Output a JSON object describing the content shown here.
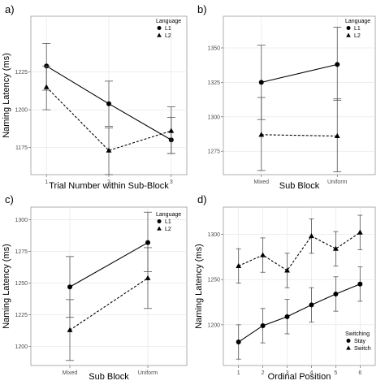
{
  "chart_data": [
    {
      "type": "line",
      "panel_label": "a)",
      "xlabel": "Trial Number within Sub-Block",
      "ylabel": "Naming Latency (ms)",
      "categories": [
        "1",
        "2",
        "3"
      ],
      "yticks": [
        1175,
        1200,
        1225
      ],
      "ylim": [
        1157,
        1262
      ],
      "legend": {
        "title": "Language",
        "position": "top-right"
      },
      "series": [
        {
          "name": "L1",
          "marker": "circle",
          "line": "solid",
          "values": [
            1229,
            1204,
            1180
          ],
          "err_low": [
            1213,
            1189,
            1171
          ],
          "err_high": [
            1244,
            1219,
            1195
          ]
        },
        {
          "name": "L2",
          "marker": "triangle",
          "line": "dashed",
          "values": [
            1215,
            1173,
            1186
          ],
          "err_low": [
            1200,
            1157,
            1171
          ],
          "err_high": [
            1229,
            1188,
            1202
          ]
        }
      ]
    },
    {
      "type": "line",
      "panel_label": "b)",
      "xlabel": "Sub Block",
      "ylabel": "",
      "categories": [
        "Mixed",
        "Uniform"
      ],
      "yticks": [
        1275,
        1300,
        1325,
        1350
      ],
      "ylim": [
        1258,
        1373
      ],
      "legend": {
        "title": "Language",
        "position": "top-right"
      },
      "series": [
        {
          "name": "L1",
          "marker": "circle",
          "line": "solid",
          "values": [
            1325,
            1338
          ],
          "err_low": [
            1298,
            1312
          ],
          "err_high": [
            1352,
            1365
          ]
        },
        {
          "name": "L2",
          "marker": "triangle",
          "line": "dashed",
          "values": [
            1287,
            1286
          ],
          "err_low": [
            1261,
            1260
          ],
          "err_high": [
            1314,
            1313
          ]
        }
      ]
    },
    {
      "type": "line",
      "panel_label": "c)",
      "xlabel": "Sub Block",
      "ylabel": "Naming Latency (ms)",
      "categories": [
        "Mixed",
        "Uniform"
      ],
      "yticks": [
        1200,
        1225,
        1250,
        1275,
        1300
      ],
      "ylim": [
        1185,
        1310
      ],
      "legend": {
        "title": "Language",
        "position": "top-right"
      },
      "series": [
        {
          "name": "L1",
          "marker": "circle",
          "line": "solid",
          "values": [
            1247,
            1282
          ],
          "err_low": [
            1223,
            1259
          ],
          "err_high": [
            1271,
            1306
          ]
        },
        {
          "name": "L2",
          "marker": "triangle",
          "line": "dashed",
          "values": [
            1213,
            1254
          ],
          "err_low": [
            1189,
            1230
          ],
          "err_high": [
            1237,
            1278
          ]
        }
      ]
    },
    {
      "type": "line",
      "panel_label": "d)",
      "xlabel": "Ordinal Position",
      "ylabel": "Naming Latency (ms)",
      "categories": [
        "1",
        "2",
        "3",
        "4",
        "5",
        "6"
      ],
      "yticks": [
        1200,
        1250,
        1300
      ],
      "ylim": [
        1155,
        1330
      ],
      "legend": {
        "title": "Switching",
        "position": "bottom-right"
      },
      "series": [
        {
          "name": "Stay",
          "marker": "circle",
          "line": "solid",
          "values": [
            1181,
            1199,
            1209,
            1222,
            1234,
            1245
          ],
          "err_low": [
            1162,
            1180,
            1190,
            1203,
            1215,
            1226
          ],
          "err_high": [
            1200,
            1218,
            1228,
            1241,
            1253,
            1264
          ]
        },
        {
          "name": "Switch",
          "marker": "triangle",
          "line": "dashed",
          "values": [
            1265,
            1277,
            1260,
            1298,
            1284,
            1302
          ],
          "err_low": [
            1246,
            1258,
            1241,
            1279,
            1265,
            1283
          ],
          "err_high": [
            1284,
            1296,
            1279,
            1317,
            1303,
            1321
          ]
        }
      ]
    }
  ]
}
